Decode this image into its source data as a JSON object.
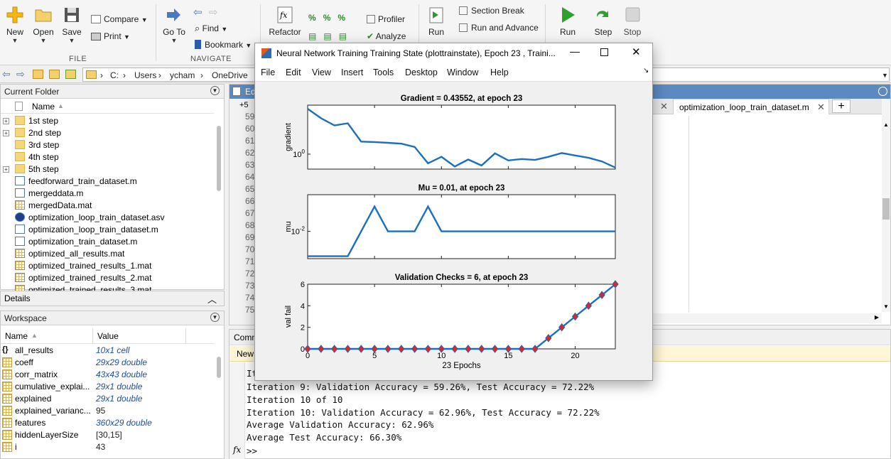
{
  "toolstrip": {
    "new_label": "New",
    "open_label": "Open",
    "save_label": "Save",
    "compare_label": "Compare",
    "print_label": "Print",
    "file_section": "FILE",
    "goto_label": "Go To",
    "find_label": "Find",
    "bookmark_label": "Bookmark",
    "navigate_section": "NAVIGATE",
    "refactor_label": "Refactor",
    "profiler_label": "Profiler",
    "analyze_label": "Analyze",
    "run_section_label": "Run",
    "section_break_label": "Section Break",
    "run_and_advance_label": "Run and Advance",
    "run_label": "Run",
    "step_label": "Step",
    "stop_label": "Stop"
  },
  "address": {
    "crumbs": [
      "C:",
      "Users",
      "ycham",
      "OneDrive"
    ]
  },
  "current_folder": {
    "title": "Current Folder",
    "column": "Name",
    "items": [
      {
        "name": "1st step",
        "type": "folder",
        "expandable": true
      },
      {
        "name": "2nd step",
        "type": "folder",
        "expandable": true
      },
      {
        "name": "3rd step",
        "type": "folder",
        "expandable": false
      },
      {
        "name": "4th step",
        "type": "folder",
        "expandable": false
      },
      {
        "name": "5th step",
        "type": "folder",
        "expandable": true
      },
      {
        "name": "feedforward_train_dataset.m",
        "type": "m"
      },
      {
        "name": "mergeddata.m",
        "type": "m"
      },
      {
        "name": "mergedData.mat",
        "type": "mat"
      },
      {
        "name": "optimization_loop_train_dataset.asv",
        "type": "asv"
      },
      {
        "name": "optimization_loop_train_dataset.m",
        "type": "m"
      },
      {
        "name": "optimization_train_dataset.m",
        "type": "m"
      },
      {
        "name": "optimized_all_results.mat",
        "type": "mat"
      },
      {
        "name": "optimized_trained_results_1.mat",
        "type": "mat"
      },
      {
        "name": "optimized_trained_results_2.mat",
        "type": "mat"
      },
      {
        "name": "optimized_trained_results_3.mat",
        "type": "mat"
      }
    ]
  },
  "details": {
    "title": "Details"
  },
  "workspace": {
    "title": "Workspace",
    "col_name": "Name",
    "col_value": "Value",
    "vars": [
      {
        "name": "all_results",
        "value": "10x1 cell",
        "italic": true,
        "icon": "cell"
      },
      {
        "name": "coeff",
        "value": "29x29 double",
        "italic": true,
        "icon": "grid"
      },
      {
        "name": "corr_matrix",
        "value": "43x43 double",
        "italic": true,
        "icon": "grid"
      },
      {
        "name": "cumulative_explai...",
        "value": "29x1 double",
        "italic": true,
        "icon": "grid"
      },
      {
        "name": "explained",
        "value": "29x1 double",
        "italic": true,
        "icon": "grid"
      },
      {
        "name": "explained_varianc...",
        "value": "95",
        "italic": false,
        "icon": "grid"
      },
      {
        "name": "features",
        "value": "360x29 double",
        "italic": true,
        "icon": "grid"
      },
      {
        "name": "hiddenLayerSize",
        "value": "[30,15]",
        "italic": false,
        "icon": "grid"
      },
      {
        "name": "i",
        "value": "43",
        "italic": false,
        "icon": "grid"
      }
    ]
  },
  "editor": {
    "tab_partial": "Ed",
    "fold_label": "+5",
    "line_numbers": [
      "59",
      "60",
      "61",
      "62",
      "63",
      "64",
      "65",
      "66",
      "67",
      "68",
      "69",
      "70",
      "71",
      "72",
      "73",
      "74",
      "75"
    ],
    "open_tab": "optimization_loop_train_dataset.m",
    "add_tab": "+"
  },
  "command_window": {
    "title_partial": "Comm",
    "new_partial": "New",
    "lines": [
      "Iteration 9: Validation Accuracy = 59.26%, Test Accuracy = 72.22%",
      "Iteration 10 of 10",
      "Iteration 10: Validation Accuracy = 62.96%, Test Accuracy = 72.22%",
      "Average Validation Accuracy: 62.96%",
      "Average Test Accuracy: 66.30%"
    ],
    "partial_line": "It",
    "prompt": ">>",
    "fx": "fx"
  },
  "figure": {
    "title": "Neural Network Training Training State (plottrainstate), Epoch 23 , Traini...",
    "menu": [
      "File",
      "Edit",
      "View",
      "Insert",
      "Tools",
      "Desktop",
      "Window",
      "Help"
    ],
    "colors": {
      "line": "#1a6fc0",
      "marker_face": "#d62b2b",
      "marker_edge": "#2e5bb0"
    }
  },
  "chart_data": [
    {
      "type": "line",
      "title": "Gradient = 0.43552, at epoch 23",
      "xlabel": "",
      "ylabel": "gradient",
      "yscale": "log",
      "yticks": [
        "10^0"
      ],
      "ylim": [
        0.4,
        20
      ],
      "xlim": [
        0,
        23
      ],
      "x": [
        0,
        1,
        2,
        3,
        4,
        5,
        6,
        7,
        8,
        9,
        10,
        11,
        12,
        13,
        14,
        15,
        16,
        17,
        18,
        19,
        20,
        21,
        22,
        23
      ],
      "values": [
        16,
        9,
        5.8,
        6.6,
        2.15,
        2.1,
        2.0,
        1.9,
        1.55,
        0.57,
        0.85,
        0.47,
        0.72,
        0.5,
        1.05,
        0.68,
        0.74,
        0.7,
        0.85,
        1.07,
        0.92,
        0.8,
        0.64,
        0.44
      ]
    },
    {
      "type": "line",
      "title": "Mu = 0.01, at epoch 23",
      "xlabel": "",
      "ylabel": "mu",
      "yscale": "log",
      "yticks": [
        "10^-2"
      ],
      "ylim": [
        0.0008,
        0.3
      ],
      "xlim": [
        0,
        23
      ],
      "x": [
        0,
        1,
        2,
        3,
        4,
        5,
        6,
        7,
        8,
        9,
        10,
        11,
        12,
        13,
        14,
        15,
        16,
        17,
        18,
        19,
        20,
        21,
        22,
        23
      ],
      "values": [
        0.001,
        0.001,
        0.001,
        0.001,
        0.01,
        0.1,
        0.01,
        0.01,
        0.01,
        0.1,
        0.01,
        0.01,
        0.01,
        0.01,
        0.01,
        0.01,
        0.01,
        0.01,
        0.01,
        0.01,
        0.01,
        0.01,
        0.01,
        0.01
      ]
    },
    {
      "type": "scatter",
      "title": "Validation Checks = 6, at epoch 23",
      "xlabel": "23 Epochs",
      "ylabel": "val fail",
      "ylim": [
        0,
        6
      ],
      "xlim": [
        0,
        23
      ],
      "yticks": [
        0,
        2,
        4,
        6
      ],
      "xticks": [
        0,
        5,
        10,
        15,
        20
      ],
      "x": [
        0,
        1,
        2,
        3,
        4,
        5,
        6,
        7,
        8,
        9,
        10,
        11,
        12,
        13,
        14,
        15,
        16,
        17,
        18,
        19,
        20,
        21,
        22,
        23
      ],
      "values": [
        0,
        0,
        0,
        0,
        0,
        0,
        0,
        0,
        0,
        0,
        0,
        0,
        0,
        0,
        0,
        0,
        0,
        0,
        1,
        2,
        3,
        4,
        5,
        6
      ]
    }
  ]
}
